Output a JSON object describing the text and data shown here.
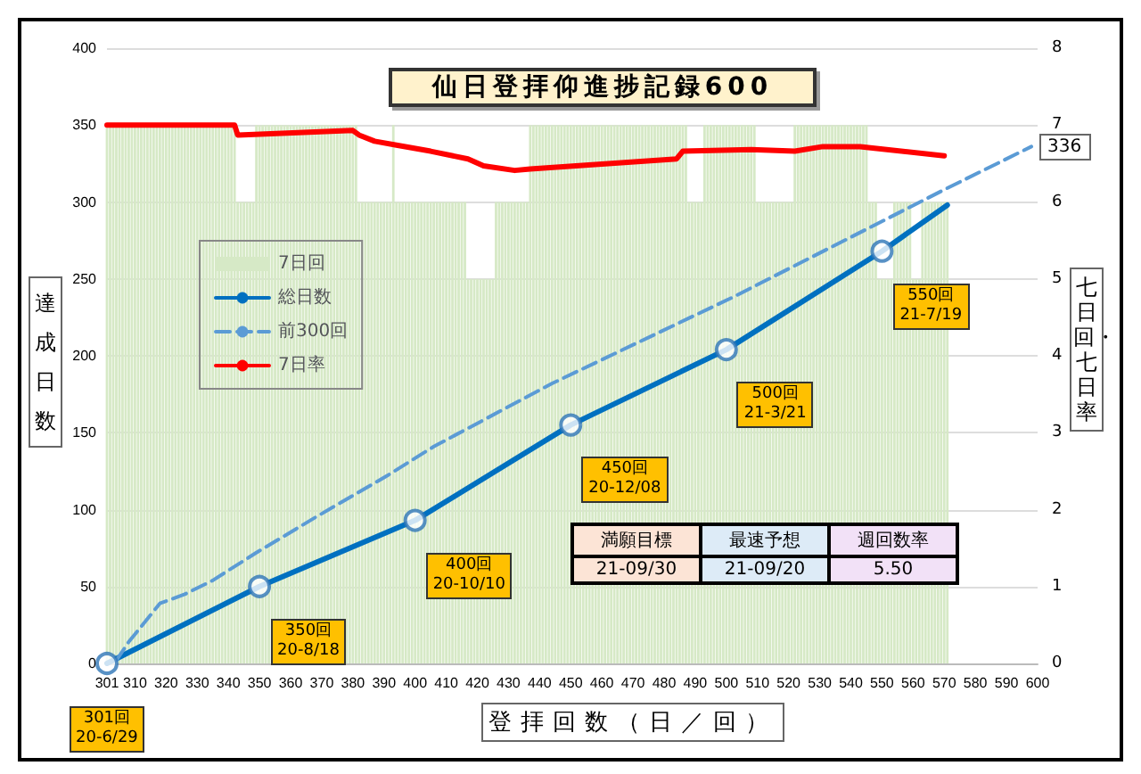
{
  "chart_data": {
    "type": "line",
    "title": "仙日登拝仰進捗記録600",
    "xlabel": "登拝回数（日／回）",
    "ylabel": "達成日数",
    "y2label": "七日回・七日率",
    "xlim": [
      301,
      600
    ],
    "xticks": [
      301,
      310,
      320,
      330,
      340,
      350,
      360,
      370,
      380,
      390,
      400,
      410,
      420,
      430,
      440,
      450,
      460,
      470,
      480,
      490,
      500,
      510,
      520,
      530,
      540,
      550,
      560,
      570,
      580,
      590,
      600
    ],
    "ylim": [
      0,
      400
    ],
    "yticks": [
      0,
      50,
      100,
      150,
      200,
      250,
      300,
      350,
      400
    ],
    "y2lim": [
      0,
      8
    ],
    "y2ticks": [
      0,
      1,
      2,
      3,
      4,
      5,
      6,
      7,
      8
    ],
    "grid": "y",
    "legend": "top left",
    "marker": "none",
    "series": [
      {
        "name": "7日回",
        "type": "bar",
        "axis": "y2",
        "color": "#d6e9c6",
        "x": [
          301,
          302,
          303,
          304,
          305,
          306,
          307,
          308,
          309,
          310,
          311,
          312,
          313,
          314,
          315,
          316,
          317,
          318,
          319,
          320,
          321,
          322,
          323,
          324,
          325,
          326,
          327,
          328,
          329,
          330,
          331,
          332,
          333,
          334,
          335,
          336,
          337,
          338,
          339,
          340,
          341,
          342,
          343,
          344,
          345,
          346,
          347,
          348,
          349,
          350,
          351,
          352,
          353,
          354,
          355,
          356,
          357,
          358,
          359,
          360,
          361,
          362,
          363,
          364,
          365,
          366,
          367,
          368,
          369,
          370,
          371,
          372,
          373,
          374,
          375,
          376,
          377,
          378,
          379,
          380,
          381,
          382,
          383,
          384,
          385,
          386,
          387,
          388,
          389,
          390,
          391,
          392,
          393,
          394,
          395,
          396,
          397,
          398,
          399,
          400,
          401,
          402,
          403,
          404,
          405,
          406,
          407,
          408,
          409,
          410,
          411,
          412,
          413,
          414,
          415,
          416,
          417,
          418,
          419,
          420,
          421,
          422,
          423,
          424,
          425,
          426,
          427,
          428,
          429,
          430,
          431,
          432,
          433,
          434,
          435,
          436,
          437,
          438,
          439,
          440,
          441,
          442,
          443,
          444,
          445,
          446,
          447,
          448,
          449,
          450,
          451,
          452,
          453,
          454,
          455,
          456,
          457,
          458,
          459,
          460,
          461,
          462,
          463,
          464,
          465,
          466,
          467,
          468,
          469,
          470,
          471,
          472,
          473,
          474,
          475,
          476,
          477,
          478,
          479,
          480,
          481,
          482,
          483,
          484,
          485,
          486,
          487,
          488,
          489,
          490,
          491,
          492,
          493,
          494,
          495,
          496,
          497,
          498,
          499,
          500,
          501,
          502,
          503,
          504,
          505,
          506,
          507,
          508,
          509,
          510,
          511,
          512,
          513,
          514,
          515,
          516,
          517,
          518,
          519,
          520,
          521,
          522,
          523,
          524,
          525,
          526,
          527,
          528,
          529,
          530,
          531,
          532,
          533,
          534,
          535,
          536,
          537,
          538,
          539,
          540,
          541,
          542,
          543,
          544,
          545,
          546,
          547,
          548,
          549,
          550,
          551,
          552,
          553,
          554,
          555,
          556,
          557,
          558,
          559,
          560,
          561,
          562,
          563,
          564,
          565,
          566,
          567,
          568,
          569,
          570,
          571
        ],
        "values": [
          7,
          7,
          7,
          7,
          7,
          7,
          7,
          7,
          7,
          7,
          7,
          7,
          7,
          7,
          7,
          7,
          7,
          7,
          7,
          7,
          7,
          7,
          7,
          7,
          7,
          7,
          7,
          7,
          7,
          7,
          7,
          7,
          7,
          7,
          7,
          7,
          7,
          7,
          7,
          7,
          7,
          7,
          6,
          6,
          6,
          6,
          6,
          6,
          7,
          7,
          7,
          7,
          7,
          7,
          7,
          7,
          7,
          7,
          7,
          7,
          7,
          7,
          7,
          7,
          7,
          7,
          7,
          7,
          7,
          7,
          7,
          7,
          7,
          7,
          7,
          7,
          7,
          7,
          7,
          7,
          7,
          6,
          6,
          6,
          6,
          6,
          6,
          6,
          6,
          6,
          6,
          6,
          7,
          6,
          6,
          6,
          6,
          6,
          6,
          6,
          6,
          6,
          6,
          6,
          6,
          6,
          6,
          6,
          6,
          6,
          6,
          6,
          6,
          6,
          6,
          6,
          5,
          5,
          5,
          5,
          5,
          5,
          5,
          5,
          5,
          6,
          6,
          6,
          6,
          6,
          6,
          6,
          6,
          6,
          6,
          6,
          7,
          7,
          7,
          7,
          7,
          7,
          7,
          7,
          7,
          7,
          7,
          7,
          7,
          7,
          7,
          7,
          7,
          7,
          7,
          7,
          7,
          7,
          7,
          7,
          7,
          7,
          7,
          7,
          7,
          7,
          7,
          7,
          7,
          7,
          7,
          7,
          7,
          7,
          7,
          7,
          7,
          7,
          7,
          7,
          7,
          7,
          7,
          7,
          7,
          7,
          7,
          6,
          6,
          6,
          6,
          6,
          7,
          7,
          7,
          7,
          7,
          7,
          7,
          7,
          7,
          7,
          7,
          7,
          7,
          7,
          7,
          7,
          7,
          6,
          6,
          6,
          6,
          6,
          6,
          6,
          6,
          6,
          6,
          6,
          6,
          7,
          7,
          7,
          7,
          7,
          7,
          7,
          7,
          7,
          7,
          7,
          7,
          7,
          7,
          7,
          7,
          7,
          7,
          7,
          7,
          7,
          7,
          7,
          7,
          6,
          6,
          6,
          5,
          5,
          5,
          5,
          5,
          6,
          6,
          6,
          6,
          6,
          6,
          5,
          5,
          5,
          6,
          6,
          6,
          6,
          6,
          6,
          6,
          6,
          6
        ]
      },
      {
        "name": "総日数",
        "color": "#0070c0",
        "x": [
          301,
          350,
          400,
          450,
          500,
          550,
          571
        ],
        "values": [
          0,
          50,
          93,
          155,
          204,
          268,
          298
        ]
      },
      {
        "name": "前300回",
        "color": "#5b9bd5",
        "line_style": "dashed",
        "x": [
          304,
          308,
          318,
          326,
          335,
          349,
          368,
          391,
          406,
          444,
          502,
          570,
          598
        ],
        "values": [
          2,
          14,
          39,
          45,
          54,
          72,
          95,
          122,
          141,
          182,
          238,
          308,
          336
        ]
      },
      {
        "name": "7日率",
        "color": "#ff0000",
        "axis": "y2",
        "x": [
          301,
          342,
          343,
          380,
          382,
          387,
          394,
          405,
          417,
          422,
          432,
          437,
          484,
          486,
          508,
          522,
          531,
          543,
          570
        ],
        "values": [
          7.0,
          7.0,
          6.87,
          6.93,
          6.87,
          6.79,
          6.74,
          6.66,
          6.56,
          6.47,
          6.41,
          6.43,
          6.56,
          6.66,
          6.68,
          6.66,
          6.72,
          6.72,
          6.6
        ]
      },
      {
        "type": "scatter",
        "color": "#2e75b6",
        "marker": "circle",
        "x": [
          301,
          350,
          400,
          450,
          500,
          550
        ],
        "values": [
          0,
          50,
          93,
          155,
          204,
          268
        ]
      }
    ],
    "annotations": [
      {
        "text": "301回\n20-6/29",
        "x": 301,
        "y": 0
      },
      {
        "text": "350回\n20-8/18",
        "x": 350,
        "y": 50
      },
      {
        "text": "400回\n20-10/10",
        "x": 400,
        "y": 93
      },
      {
        "text": "450回\n20-12/08",
        "x": 450,
        "y": 155
      },
      {
        "text": "500回\n21-3/21",
        "x": 500,
        "y": 204
      },
      {
        "text": "550回\n21-7/19",
        "x": 550,
        "y": 268
      },
      {
        "text": "336",
        "x": 598,
        "y": 336
      },
      "満願目標",
      "最速予想",
      "週回数率",
      "21-09/30",
      "21-09/20",
      "5.50"
    ]
  }
}
